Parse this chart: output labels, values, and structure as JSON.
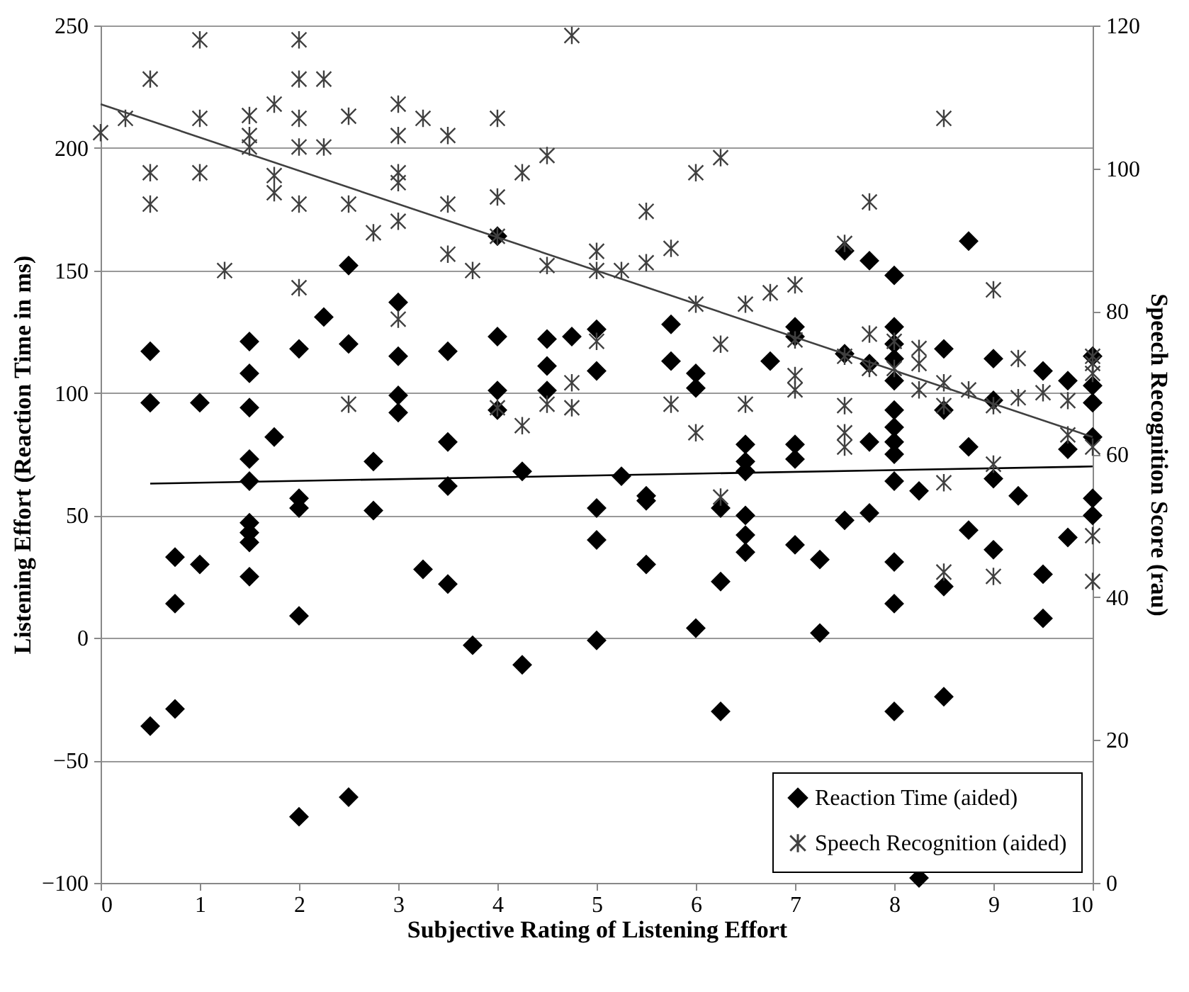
{
  "chart_data": {
    "type": "scatter",
    "xlabel": "Subjective Rating of Listening Effort",
    "ylabel": "Listening Effort (Reaction Time in ms)",
    "y2label": "Speech Recognition Score (rau)",
    "xlim": [
      0,
      10
    ],
    "xticks": [
      0,
      1,
      2,
      3,
      4,
      5,
      6,
      7,
      8,
      9,
      10
    ],
    "ylim": [
      -100,
      250
    ],
    "yticks": [
      -100,
      -50,
      0,
      50,
      100,
      150,
      200,
      250
    ],
    "y2lim": [
      0,
      120
    ],
    "y2ticks": [
      0,
      20,
      40,
      60,
      80,
      100,
      120
    ],
    "grid": "y",
    "legend": "bottom right",
    "series": [
      {
        "name": "Reaction Time (aided)",
        "color": "#000000",
        "marker": "diamond",
        "x": [
          0.5,
          0.5,
          0.5,
          0.75,
          0.75,
          0.75,
          1,
          1,
          1.5,
          1.5,
          1.5,
          1.5,
          1.5,
          1.5,
          1.5,
          1.5,
          1.5,
          1.75,
          2,
          2,
          2,
          2,
          2,
          2.25,
          2.5,
          2.5,
          2.5,
          2.75,
          2.75,
          3,
          3,
          3,
          3,
          3.25,
          3.5,
          3.5,
          3.5,
          3.5,
          3.75,
          4,
          4,
          4,
          4,
          4.25,
          4.25,
          4.5,
          4.5,
          4.5,
          4.75,
          5,
          5,
          5,
          5,
          5,
          5.25,
          5.5,
          5.5,
          5.5,
          5.75,
          5.75,
          6,
          6,
          6,
          6.25,
          6.25,
          6.25,
          6.5,
          6.5,
          6.5,
          6.5,
          6.5,
          6.5,
          6.75,
          7,
          7,
          7,
          7,
          7,
          7.25,
          7.25,
          7.5,
          7.5,
          7.5,
          7.75,
          7.75,
          7.75,
          7.75,
          8,
          8,
          8,
          8,
          8,
          8,
          8,
          8,
          8,
          8,
          8,
          8,
          8,
          8.25,
          8.25,
          8.5,
          8.5,
          8.5,
          8.5,
          8.75,
          8.75,
          8.75,
          9,
          9,
          9,
          9,
          9.25,
          9.5,
          9.5,
          9.5,
          9.75,
          9.75,
          9.75,
          10,
          10,
          10,
          10,
          10,
          10
        ],
        "values": [
          117,
          96,
          -36,
          33,
          14,
          -29,
          96,
          30,
          121,
          108,
          94,
          73,
          64,
          47,
          43,
          39,
          25,
          82,
          118,
          57,
          53,
          9,
          -73,
          131,
          152,
          120,
          -65,
          72,
          52,
          137,
          115,
          99,
          92,
          28,
          117,
          80,
          62,
          22,
          -3,
          164,
          123,
          101,
          93,
          68,
          -11,
          122,
          111,
          101,
          123,
          126,
          109,
          53,
          40,
          -1,
          66,
          58,
          56,
          30,
          128,
          113,
          108,
          102,
          4,
          53,
          23,
          -30,
          79,
          72,
          68,
          50,
          42,
          35,
          113,
          127,
          123,
          79,
          73,
          38,
          32,
          2,
          158,
          116,
          48,
          154,
          112,
          80,
          51,
          148,
          127,
          120,
          114,
          105,
          93,
          86,
          80,
          75,
          64,
          31,
          14,
          -30,
          60,
          -98,
          118,
          93,
          21,
          -24,
          162,
          78,
          44,
          114,
          97,
          65,
          36,
          58,
          109,
          26,
          8,
          105,
          77,
          41,
          115,
          103,
          96,
          82,
          57,
          50
        ]
      },
      {
        "type": "line",
        "color": "#000000",
        "x": [
          0.5,
          10
        ],
        "values": [
          63,
          70
        ]
      },
      {
        "name": "Speech Recognition (aided)",
        "color": "#404040",
        "marker": "cross",
        "axis": "y2",
        "x": [
          0,
          0.25,
          0.5,
          0.5,
          0.5,
          1,
          1,
          1,
          1.25,
          1.5,
          1.5,
          1.5,
          1.75,
          1.75,
          1.75,
          2,
          2,
          2,
          2,
          2,
          2,
          2.25,
          2.25,
          2.5,
          2.5,
          2.5,
          2.75,
          3,
          3,
          3,
          3,
          3,
          3,
          3.25,
          3.5,
          3.5,
          3.5,
          3.75,
          4,
          4,
          4,
          4,
          4.25,
          4.25,
          4.5,
          4.5,
          4.5,
          4.75,
          4.75,
          4.75,
          5,
          5,
          5,
          5.25,
          5.5,
          5.5,
          5.75,
          5.75,
          6,
          6,
          6,
          6.25,
          6.25,
          6.25,
          6.5,
          6.5,
          6.75,
          7,
          7,
          7,
          7,
          7.5,
          7.5,
          7.5,
          7.5,
          7.5,
          7.75,
          7.75,
          7.75,
          8,
          8,
          8.25,
          8.25,
          8.25,
          8.5,
          8.5,
          8.5,
          8.5,
          8.5,
          8.75,
          9,
          9,
          9,
          9,
          9.25,
          9.25,
          9.5,
          9.75,
          9.75,
          10,
          10,
          10,
          10,
          10,
          10
        ],
        "values": [
          105,
          107,
          112.5,
          99.4,
          95,
          118,
          107,
          99.4,
          85.7,
          107.4,
          104.6,
          103,
          109,
          99,
          96.6,
          118,
          112.5,
          107,
          103,
          95,
          83.3,
          112.5,
          103,
          107.3,
          95,
          67,
          91,
          109,
          104.6,
          99.4,
          98,
          92.6,
          78.9,
          107,
          104.6,
          95,
          88,
          85.7,
          107,
          96,
          90.5,
          66.5,
          99.4,
          64,
          101.8,
          86.4,
          67,
          118.6,
          70,
          66.5,
          88.4,
          85.7,
          75.8,
          85.7,
          94,
          86.8,
          88.8,
          67,
          99.4,
          81,
          63,
          101.5,
          75.4,
          54,
          81,
          67,
          82.6,
          83.7,
          76,
          71,
          69,
          89.5,
          73.7,
          66.8,
          63,
          61,
          95.3,
          76.8,
          72,
          75.8,
          72,
          74.8,
          72.7,
          69,
          107,
          70,
          66.8,
          56,
          43.5,
          69,
          83,
          66.8,
          58.6,
          42.9,
          73.4,
          67.9,
          68.6,
          67.5,
          62.7,
          73.7,
          72.7,
          71.3,
          61,
          48.6,
          42.2
        ]
      },
      {
        "type": "line",
        "color": "#404040",
        "axis": "y2",
        "x": [
          0,
          10
        ],
        "values": [
          109,
          62.4
        ]
      }
    ]
  }
}
